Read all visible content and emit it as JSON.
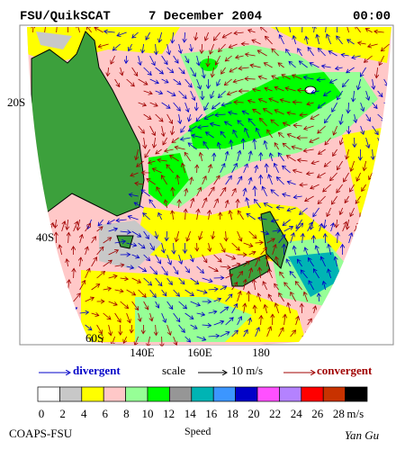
{
  "header": {
    "title": "FSU/QuikSCAT",
    "date": "7 December 2004",
    "time": "00:00"
  },
  "map": {
    "lat_labels": [
      "20S",
      "40S",
      "60S"
    ],
    "lon_labels": [
      "140E",
      "160E",
      "180"
    ]
  },
  "legend": {
    "divergent": "divergent",
    "scale": "scale",
    "scale_value": "10 m/s",
    "convergent": "convergent"
  },
  "colorbar": {
    "title": "Speed",
    "unit": "m/s",
    "ticks": [
      0,
      2,
      4,
      6,
      8,
      10,
      12,
      14,
      16,
      18,
      20,
      22,
      24,
      26,
      28
    ],
    "colors": [
      "#ffffff",
      "#c8c8c8",
      "#ffff00",
      "#ffc8c8",
      "#96ff96",
      "#00ff00",
      "#969696",
      "#00b4b4",
      "#3c96ff",
      "#0000c8",
      "#ff50ff",
      "#b482ff",
      "#ff0000",
      "#c83200",
      "#000000"
    ]
  },
  "footer": {
    "left": "COAPS-FSU",
    "right": "Yan Gu"
  }
}
